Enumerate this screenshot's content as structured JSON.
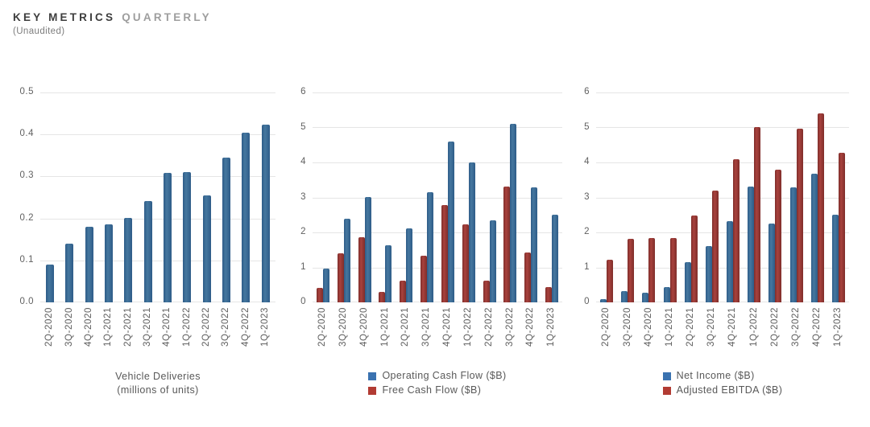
{
  "header": {
    "title_primary": "KEY METRICS",
    "title_secondary": "QUARTERLY",
    "subtitle": "(Unaudited)"
  },
  "colors": {
    "blue_light": "#45779f",
    "blue_dark": "#2e5c88",
    "red_light": "#a8423d",
    "red_dark": "#7f2d2a",
    "legend_blue": "#3a72b0",
    "legend_red": "#b23b33",
    "gridline": "#e5e5e5",
    "label_text": "#5f5f5f"
  },
  "chart_data": [
    {
      "type": "bar",
      "title": "Vehicle Deliveries",
      "ylabel": "",
      "xlabel": "",
      "categories": [
        "2Q-2020",
        "3Q-2020",
        "4Q-2020",
        "1Q-2021",
        "2Q-2021",
        "3Q-2021",
        "4Q-2021",
        "1Q-2022",
        "2Q-2022",
        "3Q-2022",
        "4Q-2022",
        "1Q-2023"
      ],
      "series": [
        {
          "name": "Vehicle Deliveries (millions of units)",
          "color": "blue",
          "values": [
            0.091,
            0.14,
            0.181,
            0.185,
            0.201,
            0.241,
            0.309,
            0.31,
            0.255,
            0.344,
            0.405,
            0.423
          ]
        }
      ],
      "ylim": [
        0,
        0.5
      ],
      "yticks": [
        "0.5",
        "0.4",
        "0.3",
        "0.2",
        "0.1",
        "0.0"
      ],
      "grid": true,
      "legend": [],
      "caption_lines": [
        "Vehicle Deliveries",
        "(millions of units)"
      ]
    },
    {
      "type": "bar",
      "title": "Cash Flow",
      "ylabel": "",
      "xlabel": "",
      "categories": [
        "2Q-2020",
        "3Q-2020",
        "4Q-2020",
        "1Q-2021",
        "2Q-2021",
        "3Q-2021",
        "4Q-2021",
        "1Q-2022",
        "2Q-2022",
        "3Q-2022",
        "4Q-2022",
        "1Q-2023"
      ],
      "series": [
        {
          "name": "Free Cash Flow ($B)",
          "color": "red",
          "values": [
            0.42,
            1.4,
            1.87,
            0.29,
            0.62,
            1.33,
            2.78,
            2.23,
            0.62,
            3.3,
            1.42,
            0.44
          ]
        },
        {
          "name": "Operating Cash Flow ($B)",
          "color": "blue",
          "values": [
            0.96,
            2.4,
            3.02,
            1.64,
            2.12,
            3.15,
            4.59,
            4.0,
            2.35,
            5.1,
            3.28,
            2.51
          ]
        }
      ],
      "ylim": [
        0,
        6
      ],
      "yticks": [
        "6",
        "5",
        "4",
        "3",
        "2",
        "1",
        "0"
      ],
      "grid": true,
      "legend": [
        {
          "label": "Operating Cash Flow ($B)",
          "color": "legend_blue"
        },
        {
          "label": "Free Cash Flow ($B)",
          "color": "legend_red"
        }
      ],
      "caption_lines": []
    },
    {
      "type": "bar",
      "title": "Profitability",
      "ylabel": "",
      "xlabel": "",
      "categories": [
        "2Q-2020",
        "3Q-2020",
        "4Q-2020",
        "1Q-2021",
        "2Q-2021",
        "3Q-2021",
        "4Q-2021",
        "1Q-2022",
        "2Q-2022",
        "3Q-2022",
        "4Q-2022",
        "1Q-2023"
      ],
      "series": [
        {
          "name": "Net Income ($B)",
          "color": "blue",
          "values": [
            0.1,
            0.33,
            0.27,
            0.44,
            1.14,
            1.62,
            2.32,
            3.32,
            2.26,
            3.29,
            3.69,
            2.51
          ]
        },
        {
          "name": "Adjusted EBITDA ($B)",
          "color": "red",
          "values": [
            1.21,
            1.81,
            1.85,
            1.84,
            2.49,
            3.2,
            4.09,
            5.02,
            3.79,
            4.97,
            5.4,
            4.27
          ]
        }
      ],
      "ylim": [
        0,
        6
      ],
      "yticks": [
        "6",
        "5",
        "4",
        "3",
        "2",
        "1",
        "0"
      ],
      "grid": true,
      "legend": [
        {
          "label": "Net Income ($B)",
          "color": "legend_blue"
        },
        {
          "label": "Adjusted EBITDA ($B)",
          "color": "legend_red"
        }
      ],
      "caption_lines": []
    }
  ]
}
